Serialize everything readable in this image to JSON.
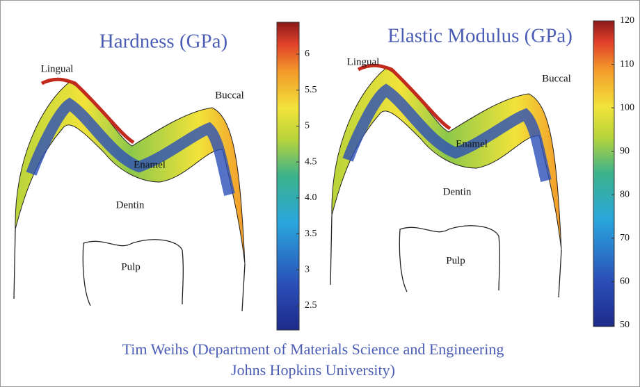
{
  "panels": [
    {
      "title": "Hardness (GPa)",
      "lingual": "Lingual",
      "buccal": "Buccal",
      "enamel": "Enamel",
      "dentin": "Dentin",
      "pulp": "Pulp",
      "colorbar_ticks": [
        "6",
        "5.5",
        "5",
        "4.5",
        "4.0",
        "3.5",
        "3",
        "2.5"
      ]
    },
    {
      "title": "Elastic Modulus (GPa)",
      "lingual": "Lingual",
      "buccal": "Buccal",
      "enamel": "Enamel",
      "dentin": "Dentin",
      "pulp": "Pulp",
      "colorbar_ticks": [
        "120",
        "110",
        "100",
        "90",
        "80",
        "70",
        "60",
        "50"
      ]
    }
  ],
  "caption": [
    "Tim Weihs (Department of Materials Science and Engineering",
    "Johns Hopkins University)"
  ]
}
